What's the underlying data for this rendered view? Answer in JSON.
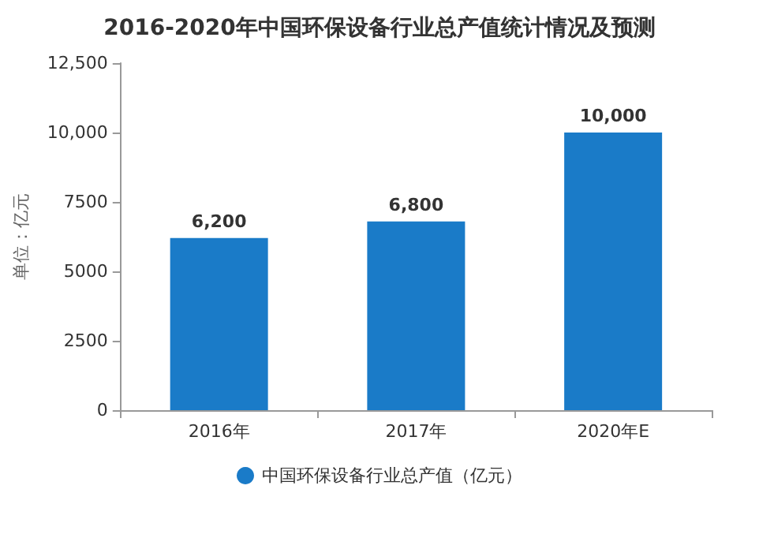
{
  "chart_data": {
    "type": "bar",
    "title": "2016-2020年中国环保设备行业总产值统计情况及预测",
    "ylabel": "单位：亿元",
    "categories": [
      "2016年",
      "2017年",
      "2020年E"
    ],
    "series": [
      {
        "name": "中国环保设备行业总产值（亿元）",
        "color": "#1a7bc8",
        "values": [
          6200,
          6800,
          10000
        ],
        "value_labels": [
          "6,200",
          "6,800",
          "10,000"
        ]
      }
    ],
    "ylim": [
      0,
      12500
    ],
    "yticks": [
      0,
      2500,
      5000,
      7500,
      {
        "value": 10000,
        "label": "10,000"
      },
      {
        "value": 12500,
        "label": "12,500"
      }
    ],
    "grid": false,
    "legend": "bottom"
  }
}
